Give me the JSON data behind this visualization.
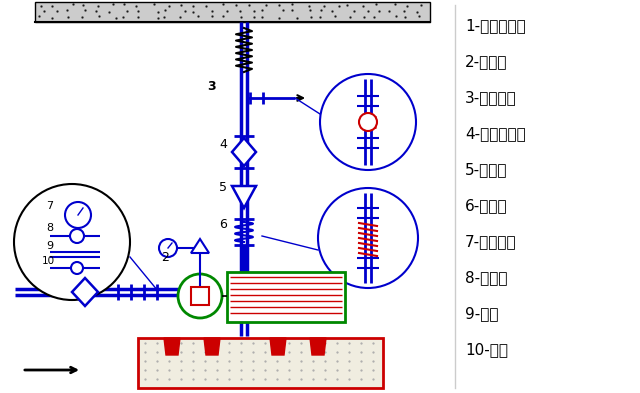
{
  "legend_items": [
    "1-蝶阀或闸阀",
    "2-压力表",
    "3-弹性吊架",
    "4-蝶阀或闸阀",
    "5-止回阀",
    "6-软接头",
    "7-压力表盘",
    "8-旋塞阀",
    "9-钢管",
    "10-接头"
  ],
  "pipe_color": "#0000cc",
  "pump_color": "#008800",
  "motor_color": "#cc0000",
  "black": "#000000",
  "white": "#ffffff",
  "bg": "#ffffff"
}
